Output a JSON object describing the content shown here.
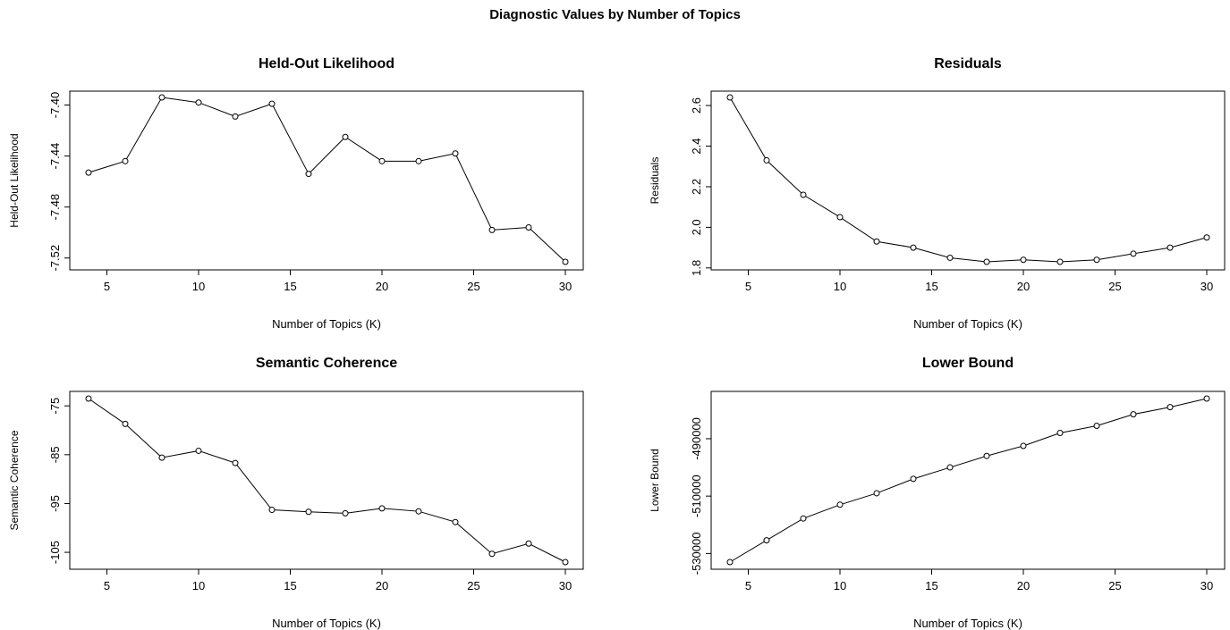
{
  "figure_title": "Diagnostic Values by Number of Topics",
  "chart_data": [
    {
      "type": "line",
      "title": "Held-Out Likelihood",
      "xlabel": "Number of Topics (K)",
      "ylabel": "Held-Out Likelihood",
      "x": [
        4,
        6,
        8,
        10,
        12,
        14,
        16,
        18,
        20,
        22,
        24,
        26,
        28,
        30
      ],
      "series": [
        {
          "values": [
            -7.453,
            -7.444,
            -7.394,
            -7.398,
            -7.409,
            -7.399,
            -7.454,
            -7.425,
            -7.444,
            -7.444,
            -7.438,
            -7.498,
            -7.496,
            -7.523
          ]
        }
      ],
      "xticks": [
        5,
        10,
        15,
        20,
        25,
        30
      ],
      "yticks": [
        -7.4,
        -7.44,
        -7.48,
        -7.52
      ],
      "ytick_labels": [
        "-7.40",
        "-7.44",
        "-7.48",
        "-7.52"
      ],
      "xlim": [
        4,
        30
      ],
      "ylim": [
        -7.523,
        -7.394
      ],
      "grid": false,
      "marker": "open-circle"
    },
    {
      "type": "line",
      "title": "Residuals",
      "xlabel": "Number of Topics (K)",
      "ylabel": "Residuals",
      "x": [
        4,
        6,
        8,
        10,
        12,
        14,
        16,
        18,
        20,
        22,
        24,
        26,
        28,
        30
      ],
      "series": [
        {
          "values": [
            2.64,
            2.33,
            2.16,
            2.05,
            1.93,
            1.9,
            1.85,
            1.83,
            1.84,
            1.83,
            1.84,
            1.87,
            1.9,
            1.95
          ]
        }
      ],
      "xticks": [
        5,
        10,
        15,
        20,
        25,
        30
      ],
      "yticks": [
        1.8,
        2.0,
        2.2,
        2.4,
        2.6
      ],
      "ytick_labels": [
        "1.8",
        "2.0",
        "2.2",
        "2.4",
        "2.6"
      ],
      "xlim": [
        4,
        30
      ],
      "ylim": [
        1.83,
        2.64
      ],
      "grid": false,
      "marker": "open-circle"
    },
    {
      "type": "line",
      "title": "Semantic Coherence",
      "xlabel": "Number of Topics (K)",
      "ylabel": "Semantic Coherence",
      "x": [
        4,
        6,
        8,
        10,
        12,
        14,
        16,
        18,
        20,
        22,
        24,
        26,
        28,
        30
      ],
      "series": [
        {
          "values": [
            -73.5,
            -78.7,
            -85.6,
            -84.2,
            -86.7,
            -96.3,
            -96.7,
            -97.0,
            -96.0,
            -96.6,
            -98.8,
            -105.3,
            -103.2,
            -107.0
          ]
        }
      ],
      "xticks": [
        5,
        10,
        15,
        20,
        25,
        30
      ],
      "yticks": [
        -75,
        -85,
        -95,
        -105
      ],
      "ytick_labels": [
        "-75",
        "-85",
        "-95",
        "-105"
      ],
      "xlim": [
        4,
        30
      ],
      "ylim": [
        -107.0,
        -73.5
      ],
      "grid": false,
      "marker": "open-circle"
    },
    {
      "type": "line",
      "title": "Lower Bound",
      "xlabel": "Number of Topics (K)",
      "ylabel": "Lower Bound",
      "x": [
        4,
        6,
        8,
        10,
        12,
        14,
        16,
        18,
        20,
        22,
        24,
        26,
        28,
        30
      ],
      "series": [
        {
          "values": [
            -533000,
            -525400,
            -517800,
            -513000,
            -509000,
            -504000,
            -500000,
            -496000,
            -492500,
            -488000,
            -485500,
            -481500,
            -479000,
            -476000
          ]
        }
      ],
      "xticks": [
        5,
        10,
        15,
        20,
        25,
        30
      ],
      "yticks": [
        -530000,
        -510000,
        -490000
      ],
      "ytick_labels": [
        "-530000",
        "-510000",
        "-490000"
      ],
      "xlim": [
        4,
        30
      ],
      "ylim": [
        -533000,
        -476000
      ],
      "grid": false,
      "marker": "open-circle"
    }
  ]
}
